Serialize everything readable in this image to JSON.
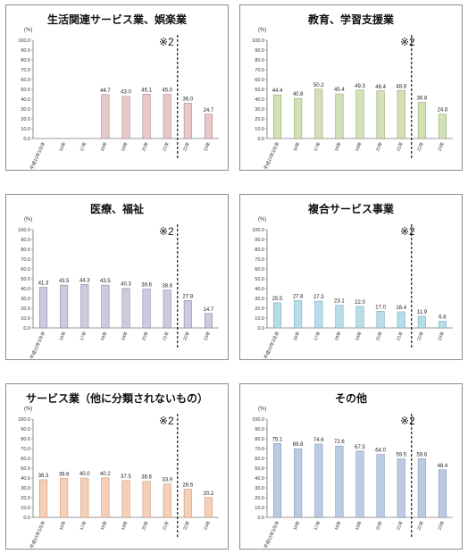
{
  "unit_label": "(%)",
  "note_label": "※2",
  "categories": [
    "平成15年3月卒",
    "16年",
    "17年",
    "18年",
    "19年",
    "20年",
    "21年",
    "22年",
    "23年"
  ],
  "chart_data": [
    {
      "type": "bar",
      "title": "生活関連サービス業、娯楽業",
      "color": "#e8c8c8",
      "stroke": "#a07878",
      "ylim": [
        0,
        100
      ],
      "categories_ref": "categories",
      "values": [
        null,
        null,
        null,
        44.7,
        43.0,
        45.1,
        45.0,
        36.0,
        24.7
      ]
    },
    {
      "type": "bar",
      "title": "教育、学習支援業",
      "color": "#d3e0b8",
      "stroke": "#7e9a5e",
      "ylim": [
        0,
        100
      ],
      "categories_ref": "categories",
      "values": [
        44.4,
        40.8,
        50.2,
        45.4,
        49.3,
        48.4,
        48.8,
        36.8,
        24.8
      ]
    },
    {
      "type": "bar",
      "title": "医療、福祉",
      "color": "#cfc8de",
      "stroke": "#7f7899",
      "ylim": [
        0,
        100
      ],
      "categories_ref": "categories",
      "values": [
        41.3,
        43.5,
        44.3,
        43.5,
        40.3,
        39.6,
        38.6,
        27.8,
        14.7
      ]
    },
    {
      "type": "bar",
      "title": "複合サービス事業",
      "color": "#b8dce8",
      "stroke": "#6a9fb4",
      "ylim": [
        0,
        100
      ],
      "categories_ref": "categories",
      "values": [
        25.5,
        27.8,
        27.3,
        23.1,
        22.0,
        17.0,
        16.4,
        11.9,
        6.8
      ]
    },
    {
      "type": "bar",
      "title": "サービス業（他に分類されないもの）",
      "color": "#f6cfb8",
      "stroke": "#c08a6a",
      "ylim": [
        0,
        100
      ],
      "categories_ref": "categories",
      "values": [
        38.3,
        39.6,
        40.0,
        40.2,
        37.5,
        36.6,
        33.9,
        28.6,
        20.2
      ]
    },
    {
      "type": "bar",
      "title": "その他",
      "color": "#bccbe4",
      "stroke": "#7288ad",
      "ylim": [
        0,
        100
      ],
      "categories_ref": "categories",
      "values": [
        75.1,
        69.8,
        74.6,
        72.6,
        67.5,
        64.0,
        59.5,
        59.6,
        48.4
      ]
    }
  ]
}
